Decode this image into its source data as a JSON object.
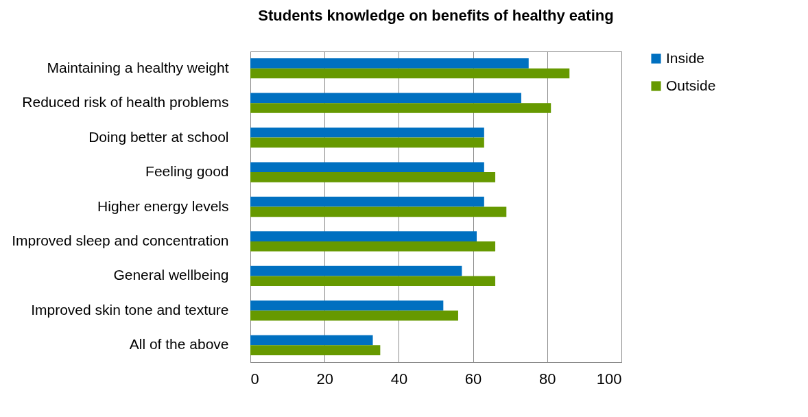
{
  "chart_data": {
    "type": "bar",
    "orientation": "horizontal",
    "title": "Students knowledge on benefits of healthy eating",
    "categories": [
      "Maintaining a healthy weight",
      "Reduced risk of health problems",
      "Doing better at school",
      "Feeling good",
      "Higher energy levels",
      "Improved sleep and concentration",
      "General wellbeing",
      "Improved skin tone and texture",
      "All of the above"
    ],
    "series": [
      {
        "name": "Inside",
        "color": "#0070c0",
        "values": [
          75,
          73,
          63,
          63,
          63,
          61,
          57,
          52,
          33
        ]
      },
      {
        "name": "Outside",
        "color": "#669900",
        "values": [
          86,
          81,
          63,
          66,
          69,
          66,
          66,
          56,
          35
        ]
      }
    ],
    "xlim": [
      0,
      100
    ],
    "xticks": [
      0,
      20,
      40,
      60,
      80,
      100
    ],
    "grid": "x",
    "legend": "right"
  }
}
